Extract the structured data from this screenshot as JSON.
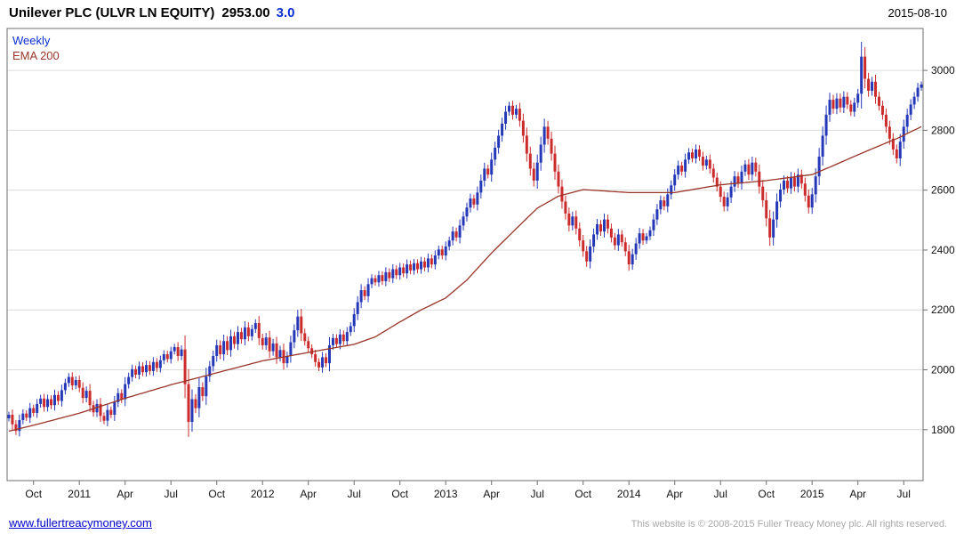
{
  "header": {
    "title": "Unilever PLC (ULVR LN EQUITY)",
    "price": "2953.00",
    "change": "3.0",
    "date": "2015-08-10"
  },
  "legend": {
    "interval": "Weekly",
    "overlay": "EMA 200"
  },
  "footer": {
    "link": "www.fullertreacymoney.com",
    "copyright": "This website is © 2008-2015 Fuller Treacy Money plc. All rights reserved."
  },
  "chart_data": {
    "type": "candlestick",
    "title": "Unilever PLC (ULVR LN EQUITY)",
    "interval": "Weekly",
    "overlay": "EMA 200",
    "last_price": 2953.0,
    "change": 3.0,
    "as_of_date": "2015-08-10",
    "ylim": [
      1630,
      3140
    ],
    "y_ticks": [
      1800,
      2000,
      2200,
      2400,
      2600,
      2800,
      3000
    ],
    "x_labels": [
      [
        "Oct",
        7
      ],
      [
        "2011",
        20
      ],
      [
        "Apr",
        33
      ],
      [
        "Jul",
        46
      ],
      [
        "Oct",
        59
      ],
      [
        "2012",
        72
      ],
      [
        "Apr",
        85
      ],
      [
        "Jul",
        98
      ],
      [
        "Oct",
        111
      ],
      [
        "2013",
        124
      ],
      [
        "Apr",
        137
      ],
      [
        "Jul",
        150
      ],
      [
        "Oct",
        163
      ],
      [
        "2014",
        176
      ],
      [
        "Apr",
        189
      ],
      [
        "Jul",
        202
      ],
      [
        "Oct",
        215
      ],
      [
        "2015",
        228
      ],
      [
        "Apr",
        241
      ],
      [
        "Jul",
        254
      ]
    ],
    "colors": {
      "up": "#2438b8",
      "down": "#cc2b2b",
      "ema": "#993528",
      "grid": "#dcdcdc",
      "border": "#6e6e6e",
      "accent_blue": "#0a2fd4"
    },
    "closes": [
      1850,
      1818,
      1796,
      1832,
      1854,
      1840,
      1872,
      1856,
      1886,
      1904,
      1876,
      1902,
      1882,
      1916,
      1896,
      1932,
      1956,
      1976,
      1948,
      1966,
      1940,
      1906,
      1930,
      1882,
      1858,
      1886,
      1846,
      1830,
      1866,
      1850,
      1892,
      1922,
      1902,
      1952,
      1976,
      2002,
      1984,
      2012,
      1992,
      2016,
      1996,
      2026,
      2006,
      2032,
      2052,
      2036,
      2062,
      2076,
      2046,
      2068,
      1952,
      1826,
      1902,
      1872,
      1942,
      1912,
      1978,
      2012,
      2046,
      2082,
      2052,
      2096,
      2066,
      2112,
      2086,
      2126,
      2102,
      2142,
      2112,
      2136,
      2156,
      2106,
      2082,
      2108,
      2062,
      2088,
      2042,
      2066,
      2022,
      2046,
      2092,
      2132,
      2178,
      2122,
      2096,
      2072,
      2052,
      2026,
      2008,
      2042,
      2022,
      2082,
      2106,
      2086,
      2118,
      2096,
      2126,
      2146,
      2186,
      2226,
      2266,
      2246,
      2286,
      2306,
      2292,
      2316,
      2296,
      2326,
      2306,
      2336,
      2316,
      2342,
      2322,
      2352,
      2332,
      2356,
      2336,
      2362,
      2342,
      2372,
      2352,
      2382,
      2402,
      2382,
      2412,
      2432,
      2462,
      2442,
      2482,
      2512,
      2542,
      2572,
      2552,
      2592,
      2632,
      2672,
      2652,
      2702,
      2742,
      2782,
      2822,
      2862,
      2882,
      2852,
      2872,
      2832,
      2782,
      2722,
      2672,
      2632,
      2692,
      2752,
      2812,
      2772,
      2722,
      2662,
      2612,
      2562,
      2522,
      2482,
      2512,
      2472,
      2432,
      2396,
      2362,
      2412,
      2452,
      2486,
      2462,
      2502,
      2472,
      2442,
      2416,
      2452,
      2426,
      2396,
      2352,
      2386,
      2422,
      2456,
      2432,
      2446,
      2466,
      2502,
      2536,
      2566,
      2546,
      2586,
      2616,
      2652,
      2682,
      2662,
      2702,
      2726,
      2706,
      2736,
      2712,
      2682,
      2702,
      2672,
      2642,
      2612,
      2578,
      2546,
      2576,
      2612,
      2646,
      2622,
      2662,
      2686,
      2652,
      2692,
      2662,
      2612,
      2566,
      2506,
      2442,
      2502,
      2562,
      2602,
      2632,
      2606,
      2642,
      2612,
      2652,
      2622,
      2582,
      2542,
      2586,
      2646,
      2712,
      2782,
      2852,
      2902,
      2872,
      2906,
      2876,
      2912,
      2886,
      2862,
      2892,
      2922,
      3046,
      2972,
      2932,
      2962,
      2912,
      2882,
      2852,
      2812,
      2772,
      2736,
      2706,
      2762,
      2812,
      2852,
      2886,
      2912,
      2942,
      2953
    ],
    "ema200_anchors": [
      [
        0,
        1795
      ],
      [
        7,
        1815
      ],
      [
        20,
        1855
      ],
      [
        33,
        1905
      ],
      [
        46,
        1950
      ],
      [
        59,
        1990
      ],
      [
        72,
        2030
      ],
      [
        85,
        2058
      ],
      [
        98,
        2085
      ],
      [
        104,
        2110
      ],
      [
        111,
        2160
      ],
      [
        117,
        2200
      ],
      [
        124,
        2240
      ],
      [
        130,
        2300
      ],
      [
        137,
        2390
      ],
      [
        143,
        2460
      ],
      [
        150,
        2540
      ],
      [
        156,
        2580
      ],
      [
        163,
        2602
      ],
      [
        176,
        2592
      ],
      [
        189,
        2592
      ],
      [
        202,
        2618
      ],
      [
        215,
        2632
      ],
      [
        228,
        2652
      ],
      [
        234,
        2682
      ],
      [
        241,
        2718
      ],
      [
        247,
        2748
      ],
      [
        252,
        2772
      ],
      [
        259,
        2812
      ]
    ]
  }
}
